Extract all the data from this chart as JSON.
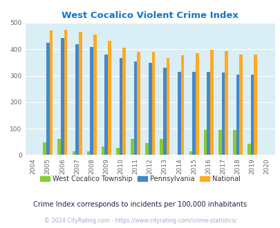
{
  "title": "West Cocalico Violent Crime Index",
  "years": [
    "2004",
    "2005",
    "2006",
    "2007",
    "2008",
    "2009",
    "2010",
    "2011",
    "2012",
    "2013",
    "2014",
    "2015",
    "2016",
    "2017",
    "2018",
    "2019",
    "2020"
  ],
  "west_cocalico": [
    0,
    47,
    60,
    13,
    13,
    33,
    27,
    60,
    46,
    60,
    0,
    13,
    96,
    96,
    96,
    43,
    0
  ],
  "pennsylvania": [
    0,
    425,
    442,
    418,
    408,
    380,
    366,
    353,
    349,
    330,
    314,
    314,
    314,
    311,
    305,
    305,
    0
  ],
  "national": [
    0,
    470,
    474,
    467,
    455,
    431,
    405,
    389,
    389,
    368,
    377,
    384,
    398,
    394,
    380,
    380,
    0
  ],
  "west_cocalico_color": "#88cc33",
  "pennsylvania_color": "#4488cc",
  "national_color": "#ffaa22",
  "bg_color": "#daeef5",
  "title_color": "#1177cc",
  "grid_color": "#ffffff",
  "ylim": [
    0,
    500
  ],
  "yticks": [
    0,
    100,
    200,
    300,
    400,
    500
  ],
  "footnote1": "Crime Index corresponds to incidents per 100,000 inhabitants",
  "footnote2": "© 2024 CityRating.com - https://www.cityrating.com/crime-statistics/",
  "legend_labels": [
    "West Cocalico Township",
    "Pennsylvania",
    "National"
  ],
  "footnote1_color": "#222244",
  "footnote2_color": "#aaaacc",
  "tick_color": "#666666"
}
